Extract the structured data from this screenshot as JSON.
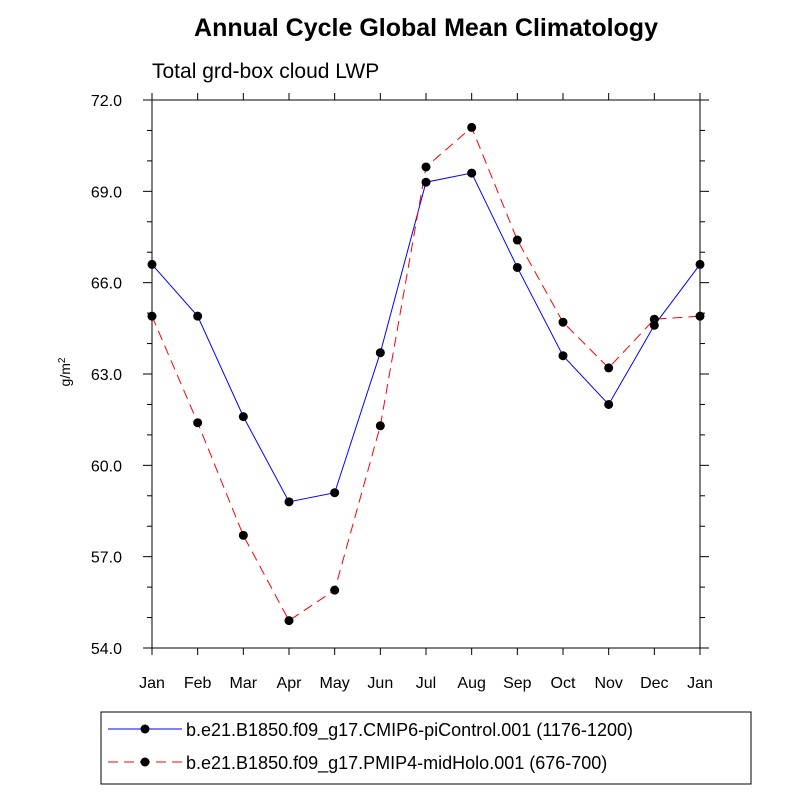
{
  "chart_data": {
    "type": "line",
    "title": "Annual Cycle Global Mean Climatology",
    "subtitle": "Total grd-box cloud LWP",
    "ylabel_base": "g/m",
    "ylabel_sup": "2",
    "xlabel": "",
    "categories": [
      "Jan",
      "Feb",
      "Mar",
      "Apr",
      "May",
      "Jun",
      "Jul",
      "Aug",
      "Sep",
      "Oct",
      "Nov",
      "Dec",
      "Jan"
    ],
    "ylim": [
      54.0,
      72.0
    ],
    "yticks": [
      "54.0",
      "57.0",
      "60.0",
      "63.0",
      "66.0",
      "69.0",
      "72.0"
    ],
    "series": [
      {
        "name": "b.e21.B1850.f09_g17.CMIP6-piControl.001 (1176-1200)",
        "color": "#0000ff",
        "dash": "solid",
        "values": [
          66.6,
          64.9,
          61.6,
          58.8,
          59.1,
          63.7,
          69.3,
          69.6,
          66.5,
          63.6,
          62.0,
          64.6,
          66.6
        ]
      },
      {
        "name": "b.e21.B1850.f09_g17.PMIP4-midHolo.001 (676-700)",
        "color": "#ff0000",
        "dash": "dashed",
        "values": [
          64.9,
          61.4,
          57.7,
          54.9,
          55.9,
          61.3,
          69.8,
          71.1,
          67.4,
          64.7,
          63.2,
          64.8,
          64.9
        ]
      }
    ],
    "grid": false,
    "legend_position": "bottom"
  }
}
